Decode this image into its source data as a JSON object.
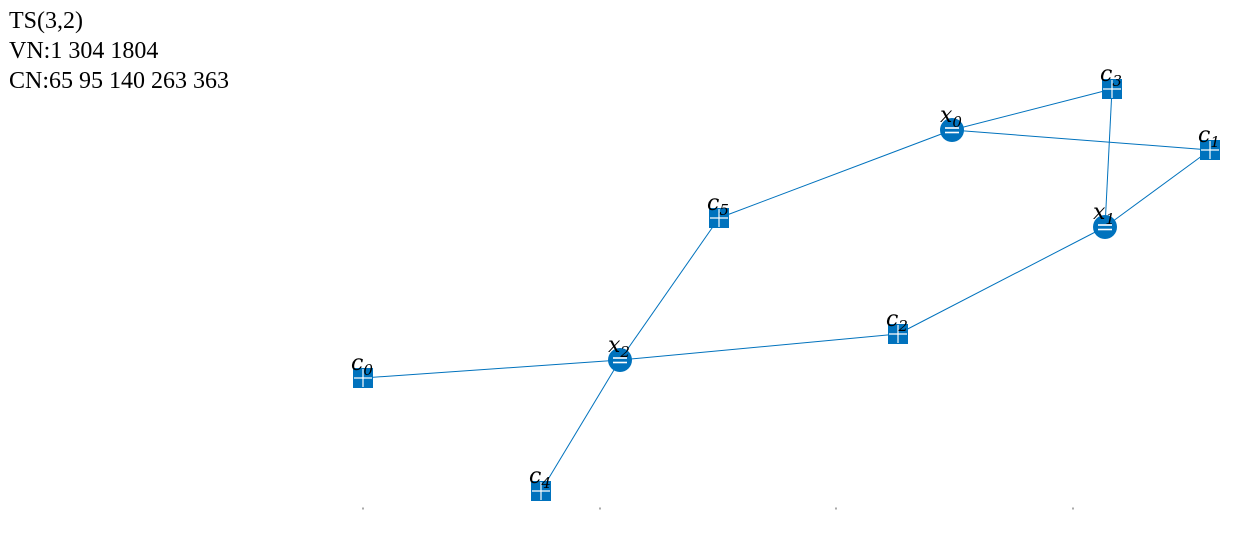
{
  "header": {
    "title": "TS(3,2)",
    "vn_line": "VN:1 304 1804",
    "cn_line": "CN:65 95 140 263 363"
  },
  "colors": {
    "node": "#0072BD",
    "edge": "#0072BD",
    "label": "#000000",
    "symbol": "#ffffff"
  },
  "graph": {
    "variable_nodes": [
      {
        "id": "x0",
        "base": "x",
        "sub": "0",
        "symbol": "="
      },
      {
        "id": "x1",
        "base": "x",
        "sub": "1",
        "symbol": "="
      },
      {
        "id": "x2",
        "base": "x",
        "sub": "2",
        "symbol": "="
      }
    ],
    "check_nodes": [
      {
        "id": "c0",
        "base": "c",
        "sub": "0",
        "symbol": "+"
      },
      {
        "id": "c1",
        "base": "c",
        "sub": "1",
        "symbol": "+"
      },
      {
        "id": "c2",
        "base": "c",
        "sub": "2",
        "symbol": "+"
      },
      {
        "id": "c3",
        "base": "c",
        "sub": "3",
        "symbol": "+"
      },
      {
        "id": "c4",
        "base": "c",
        "sub": "4",
        "symbol": "+"
      },
      {
        "id": "c5",
        "base": "c",
        "sub": "5",
        "symbol": "+"
      }
    ],
    "edges": [
      [
        "x0",
        "c3"
      ],
      [
        "x0",
        "c1"
      ],
      [
        "x0",
        "c5"
      ],
      [
        "x1",
        "c3"
      ],
      [
        "x1",
        "c1"
      ],
      [
        "x1",
        "c2"
      ],
      [
        "x2",
        "c5"
      ],
      [
        "x2",
        "c2"
      ],
      [
        "x2",
        "c0"
      ],
      [
        "x2",
        "c4"
      ]
    ]
  }
}
